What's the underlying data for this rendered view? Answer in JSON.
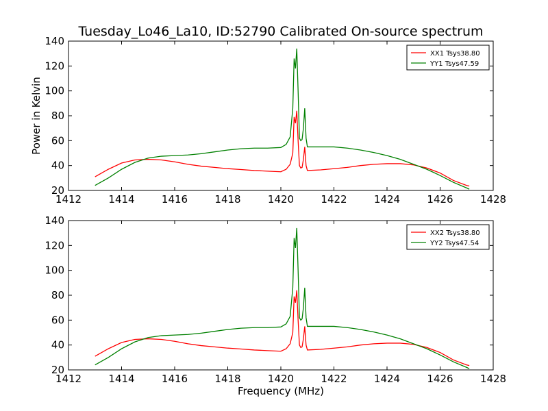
{
  "chart_data": [
    {
      "type": "line",
      "title": "Tuesday_Lo46_La10, ID:52790 Calibrated On-source spectrum",
      "xlabel": "",
      "ylabel": "Power in Kelvin",
      "xlim": [
        1412,
        1428
      ],
      "ylim": [
        20,
        140
      ],
      "xticks": [
        1412,
        1414,
        1416,
        1418,
        1420,
        1422,
        1424,
        1426,
        1428
      ],
      "yticks": [
        20,
        40,
        60,
        80,
        100,
        120,
        140
      ],
      "legend_position": "top-right",
      "grid": false,
      "series": [
        {
          "name": "XX1 Tsys38.80",
          "color": "#ff0000",
          "x": [
            1413.0,
            1413.5,
            1414.0,
            1414.5,
            1415.0,
            1415.5,
            1416.0,
            1416.5,
            1417.0,
            1417.5,
            1418.0,
            1418.5,
            1419.0,
            1419.5,
            1420.0,
            1420.2,
            1420.35,
            1420.45,
            1420.5,
            1420.55,
            1420.6,
            1420.65,
            1420.7,
            1420.75,
            1420.8,
            1420.85,
            1420.9,
            1420.95,
            1421.0,
            1421.5,
            1422.0,
            1422.5,
            1423.0,
            1423.5,
            1424.0,
            1424.5,
            1425.0,
            1425.5,
            1426.0,
            1426.5,
            1427.0,
            1427.1
          ],
          "y": [
            31,
            37,
            42,
            44.5,
            45,
            44.5,
            43,
            41,
            39.5,
            38.5,
            37.5,
            36.8,
            36,
            35.5,
            35,
            37,
            41,
            50,
            79,
            74,
            84,
            60,
            40,
            38,
            38.5,
            45,
            55,
            40,
            36,
            36.5,
            37.5,
            38.5,
            40,
            41,
            41.5,
            41.5,
            40.5,
            38,
            34,
            28,
            24,
            23.5
          ]
        },
        {
          "name": "YY1 Tsys47.59",
          "color": "#008000",
          "x": [
            1413.0,
            1413.5,
            1414.0,
            1414.5,
            1415.0,
            1415.5,
            1416.0,
            1416.5,
            1417.0,
            1417.5,
            1418.0,
            1418.5,
            1419.0,
            1419.5,
            1420.0,
            1420.2,
            1420.35,
            1420.45,
            1420.5,
            1420.55,
            1420.6,
            1420.65,
            1420.7,
            1420.75,
            1420.8,
            1420.85,
            1420.9,
            1420.95,
            1421.0,
            1421.5,
            1422.0,
            1422.5,
            1423.0,
            1423.5,
            1424.0,
            1424.5,
            1425.0,
            1425.5,
            1426.0,
            1426.5,
            1427.0,
            1427.1
          ],
          "y": [
            24,
            30,
            37,
            42.5,
            46,
            47.5,
            48,
            48.5,
            49.5,
            51,
            52.5,
            53.5,
            54,
            54,
            54.5,
            57,
            63,
            86,
            126,
            118,
            134,
            100,
            62,
            60,
            61,
            70,
            86,
            62,
            55,
            55,
            55,
            54,
            52.5,
            50.5,
            48,
            45,
            41,
            37,
            32,
            26.5,
            22,
            21
          ]
        }
      ]
    },
    {
      "type": "line",
      "title": "",
      "xlabel": "Frequency (MHz)",
      "ylabel": "",
      "xlim": [
        1412,
        1428
      ],
      "ylim": [
        20,
        140
      ],
      "xticks": [
        1412,
        1414,
        1416,
        1418,
        1420,
        1422,
        1424,
        1426,
        1428
      ],
      "yticks": [
        20,
        40,
        60,
        80,
        100,
        120,
        140
      ],
      "legend_position": "top-right",
      "grid": false,
      "series": [
        {
          "name": "XX2 Tsys38.80",
          "color": "#ff0000",
          "x": [
            1413.0,
            1413.5,
            1414.0,
            1414.5,
            1415.0,
            1415.5,
            1416.0,
            1416.5,
            1417.0,
            1417.5,
            1418.0,
            1418.5,
            1419.0,
            1419.5,
            1420.0,
            1420.2,
            1420.35,
            1420.45,
            1420.5,
            1420.55,
            1420.6,
            1420.65,
            1420.7,
            1420.75,
            1420.8,
            1420.85,
            1420.9,
            1420.95,
            1421.0,
            1421.5,
            1422.0,
            1422.5,
            1423.0,
            1423.5,
            1424.0,
            1424.5,
            1425.0,
            1425.5,
            1426.0,
            1426.5,
            1427.0,
            1427.1
          ],
          "y": [
            31,
            37,
            42,
            44.5,
            45,
            44.5,
            43,
            41,
            39.5,
            38.5,
            37.5,
            36.8,
            36,
            35.5,
            35,
            37,
            41,
            50,
            79,
            74,
            84,
            60,
            40,
            38,
            38.5,
            45,
            55,
            40,
            36,
            36.5,
            37.5,
            38.5,
            40,
            41,
            41.5,
            41.5,
            40.5,
            38,
            34,
            28,
            24,
            23.5
          ]
        },
        {
          "name": "YY2 Tsys47.54",
          "color": "#008000",
          "x": [
            1413.0,
            1413.5,
            1414.0,
            1414.5,
            1415.0,
            1415.5,
            1416.0,
            1416.5,
            1417.0,
            1417.5,
            1418.0,
            1418.5,
            1419.0,
            1419.5,
            1420.0,
            1420.2,
            1420.35,
            1420.45,
            1420.5,
            1420.55,
            1420.6,
            1420.65,
            1420.7,
            1420.75,
            1420.8,
            1420.85,
            1420.9,
            1420.95,
            1421.0,
            1421.5,
            1422.0,
            1422.5,
            1423.0,
            1423.5,
            1424.0,
            1424.5,
            1425.0,
            1425.5,
            1426.0,
            1426.5,
            1427.0,
            1427.1
          ],
          "y": [
            24,
            30,
            37,
            42.5,
            46,
            47.5,
            48,
            48.5,
            49.5,
            51,
            52.5,
            53.5,
            54,
            54,
            54.5,
            57,
            63,
            86,
            126,
            118,
            134,
            100,
            62,
            60,
            61,
            70,
            86,
            62,
            55,
            55,
            55,
            54,
            52.5,
            50.5,
            48,
            45,
            41,
            37,
            32,
            26.5,
            22,
            21
          ]
        }
      ]
    }
  ]
}
